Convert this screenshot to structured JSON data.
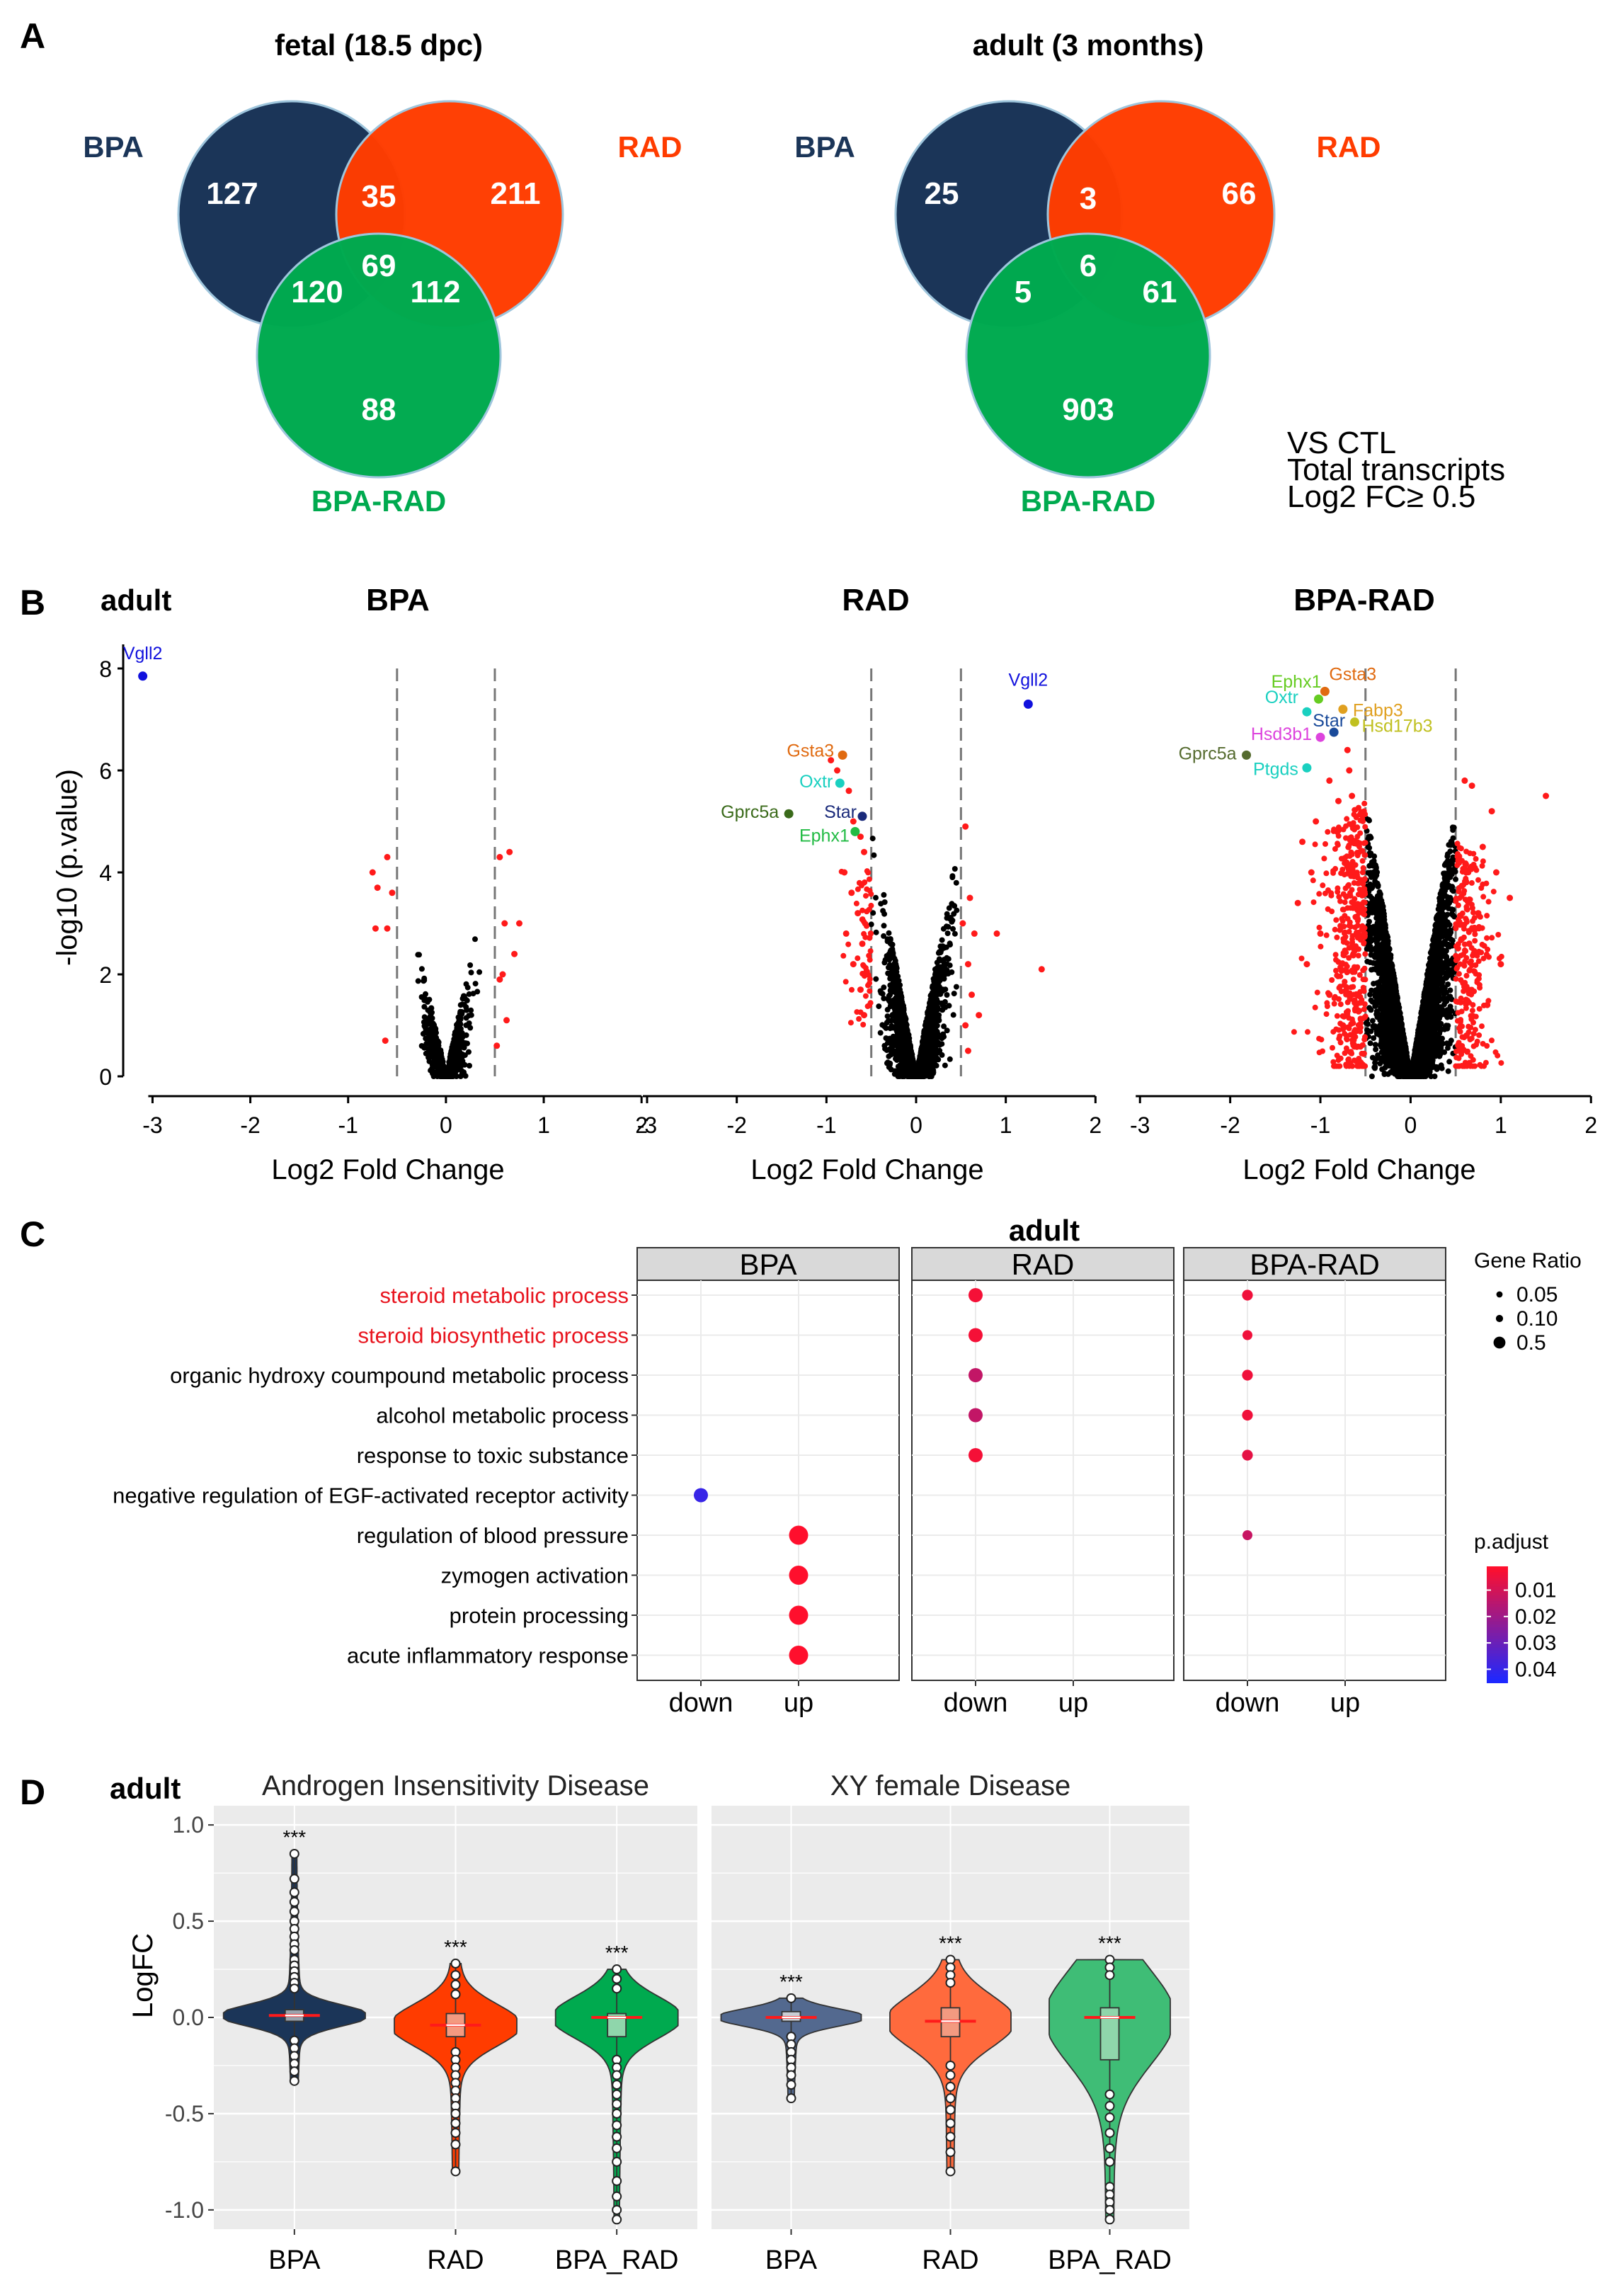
{
  "panel_labels": {
    "A": "A",
    "B": "B",
    "C": "C",
    "D": "D"
  },
  "colors": {
    "bpa": "#1b3558",
    "rad": "#ff3c00",
    "bparad": "#00aa4f",
    "sig": "#ff1a1a",
    "ns": "#000000",
    "bpa_light": "#53698f",
    "rad_light": "#ff6a3d",
    "bparad_light": "#3fbd76"
  },
  "panelA": {
    "venns": [
      {
        "title": "fetal (18.5 dpc)",
        "set_labels": {
          "bpa": "BPA",
          "rad": "RAD",
          "bparad": "BPA-RAD"
        },
        "counts": {
          "bpa_only": "127",
          "bpa_rad": "35",
          "rad_only": "211",
          "bpa_bparad": "120",
          "all": "69",
          "rad_bparad": "112",
          "bparad_only": "88"
        }
      },
      {
        "title": "adult (3 months)",
        "set_labels": {
          "bpa": "BPA",
          "rad": "RAD",
          "bparad": "BPA-RAD"
        },
        "counts": {
          "bpa_only": "25",
          "bpa_rad": "3",
          "rad_only": "66",
          "bpa_bparad": "5",
          "all": "6",
          "rad_bparad": "61",
          "bparad_only": "903"
        }
      }
    ],
    "note_lines": [
      "VS CTL",
      "Total transcripts",
      "Log2 FC≥ 0.5"
    ]
  },
  "panelB": {
    "label": "adult",
    "ylabel": "-log10 (p.value)",
    "xlabel": "Log2 Fold Change",
    "x_ticks": [
      "-3",
      "-2",
      "-1",
      "0",
      "1",
      "2"
    ],
    "y_ticks": [
      "0",
      "2",
      "4",
      "6",
      "8"
    ]
  },
  "chart_data": [
    {
      "type": "scatter",
      "title": "BPA",
      "xlabel": "Log2 Fold Change",
      "ylabel": "-log10 (p.value)",
      "xlim": [
        -3.3,
        2.1
      ],
      "ylim": [
        0,
        8.5
      ],
      "threshold": 0.5,
      "labeled_points": [
        {
          "label": "Vgll2",
          "x": -3.1,
          "y": 7.85,
          "color": "#1111dd"
        }
      ],
      "sig_points": [
        [
          -0.75,
          4.0
        ],
        [
          -0.7,
          3.7
        ],
        [
          -0.72,
          2.9
        ],
        [
          -0.6,
          2.9
        ],
        [
          -0.6,
          4.3
        ],
        [
          -0.55,
          3.6
        ],
        [
          -0.62,
          0.7
        ],
        [
          0.55,
          4.3
        ],
        [
          0.65,
          4.4
        ],
        [
          0.6,
          3.0
        ],
        [
          0.7,
          2.4
        ],
        [
          0.58,
          2.0
        ],
        [
          0.75,
          3.0
        ],
        [
          0.62,
          1.1
        ],
        [
          0.55,
          1.9
        ],
        [
          0.52,
          0.6
        ]
      ]
    },
    {
      "type": "scatter",
      "title": "RAD",
      "xlabel": "Log2 Fold Change",
      "ylabel": "-log10 (p.value)",
      "xlim": [
        -3.3,
        2.1
      ],
      "ylim": [
        0,
        8.5
      ],
      "threshold": 0.5,
      "labeled_points": [
        {
          "label": "Vgll2",
          "x": 1.25,
          "y": 7.3,
          "color": "#1111dd"
        },
        {
          "label": "Gsta3",
          "x": -0.82,
          "y": 6.3,
          "color": "#e06a10"
        },
        {
          "label": "Oxtr",
          "x": -0.85,
          "y": 5.75,
          "color": "#1ad0c0"
        },
        {
          "label": "Gprc5a",
          "x": -1.42,
          "y": 5.15,
          "color": "#3a6a1a"
        },
        {
          "label": "Star",
          "x": -0.6,
          "y": 5.1,
          "color": "#1a2a7a"
        },
        {
          "label": "Ephx1",
          "x": -0.68,
          "y": 4.8,
          "color": "#22bb44"
        }
      ],
      "sig_points": [
        [
          -0.95,
          6.2
        ],
        [
          -0.88,
          6.0
        ],
        [
          -0.75,
          5.6
        ],
        [
          -0.7,
          5.0
        ],
        [
          -0.62,
          4.7
        ],
        [
          -0.58,
          4.4
        ],
        [
          -0.8,
          4.0
        ],
        [
          -0.72,
          3.6
        ],
        [
          -0.65,
          3.2
        ],
        [
          -0.78,
          2.8
        ],
        [
          -0.6,
          2.6
        ],
        [
          -0.7,
          2.2
        ],
        [
          -0.62,
          1.7
        ],
        [
          -0.58,
          1.2
        ],
        [
          0.55,
          4.9
        ],
        [
          0.6,
          3.5
        ],
        [
          0.52,
          3.0
        ],
        [
          0.65,
          2.8
        ],
        [
          0.9,
          2.8
        ],
        [
          0.58,
          2.2
        ],
        [
          0.62,
          1.6
        ],
        [
          0.55,
          1.0
        ],
        [
          1.4,
          2.1
        ],
        [
          0.7,
          1.2
        ],
        [
          0.58,
          0.5
        ]
      ]
    },
    {
      "type": "scatter",
      "title": "BPA-RAD",
      "xlabel": "Log2 Fold Change",
      "ylabel": "-log10 (p.value)",
      "xlim": [
        -3.3,
        2.1
      ],
      "ylim": [
        0,
        8.5
      ],
      "threshold": 0.5,
      "labeled_points": [
        {
          "label": "Gsta3",
          "x": -0.95,
          "y": 7.55,
          "color": "#e06a10"
        },
        {
          "label": "Ephx1",
          "x": -1.02,
          "y": 7.4,
          "color": "#66cc22"
        },
        {
          "label": "Fabp3",
          "x": -0.75,
          "y": 7.2,
          "color": "#e0a020"
        },
        {
          "label": "Oxtr",
          "x": -1.15,
          "y": 7.15,
          "color": "#1ad0c0"
        },
        {
          "label": "Star",
          "x": -0.85,
          "y": 6.75,
          "color": "#1a4a9a"
        },
        {
          "label": "Hsd17b3",
          "x": -0.62,
          "y": 6.95,
          "color": "#c0c020"
        },
        {
          "label": "Hsd3b1",
          "x": -1.0,
          "y": 6.65,
          "color": "#dd44dd"
        },
        {
          "label": "Gprc5a",
          "x": -1.82,
          "y": 6.3,
          "color": "#556b2f"
        },
        {
          "label": "Ptgds",
          "x": -1.15,
          "y": 6.05,
          "color": "#1ad0c0"
        }
      ],
      "sig_points": [
        [
          -0.7,
          6.4
        ],
        [
          -0.68,
          6.0
        ],
        [
          -0.9,
          5.8
        ],
        [
          -0.65,
          5.5
        ],
        [
          -0.8,
          5.4
        ],
        [
          1.5,
          5.5
        ],
        [
          0.6,
          5.8
        ],
        [
          0.68,
          5.7
        ],
        [
          0.9,
          5.2
        ],
        [
          0.8,
          4.5
        ],
        [
          0.95,
          4.0
        ],
        [
          1.1,
          3.5
        ],
        [
          0.75,
          3.2
        ],
        [
          0.65,
          2.6
        ],
        [
          1.0,
          2.2
        ],
        [
          0.85,
          1.4
        ],
        [
          0.62,
          0.8
        ],
        [
          -1.2,
          4.6
        ],
        [
          -1.1,
          4.0
        ],
        [
          -1.25,
          3.4
        ],
        [
          -1.0,
          2.8
        ],
        [
          -1.15,
          2.2
        ],
        [
          -0.9,
          1.6
        ],
        [
          -0.75,
          1.0
        ],
        [
          -1.05,
          5.0
        ]
      ]
    },
    {
      "type": "dotplot",
      "title": "adult",
      "facets": [
        "BPA",
        "RAD",
        "BPA-RAD"
      ],
      "directions": [
        "down",
        "up"
      ],
      "terms": [
        "steroid metabolic process",
        "steroid biosynthetic process",
        "organic hydroxy coumpound metabolic process",
        "alcohol metabolic process",
        "response to toxic substance",
        "negative regulation of EGF-activated receptor activity",
        "regulation of blood pressure",
        "zymogen activation",
        "protein processing",
        "acute inflammatory response"
      ],
      "highlight_terms": [
        "steroid metabolic process",
        "steroid biosynthetic process"
      ],
      "points": [
        {
          "facet": "RAD",
          "direction": "down",
          "term": "steroid metabolic process",
          "gene_ratio": 0.2,
          "p_adjust": 0.003
        },
        {
          "facet": "RAD",
          "direction": "down",
          "term": "steroid biosynthetic process",
          "gene_ratio": 0.2,
          "p_adjust": 0.003
        },
        {
          "facet": "RAD",
          "direction": "down",
          "term": "organic hydroxy coumpound metabolic process",
          "gene_ratio": 0.2,
          "p_adjust": 0.013
        },
        {
          "facet": "RAD",
          "direction": "down",
          "term": "alcohol metabolic process",
          "gene_ratio": 0.2,
          "p_adjust": 0.013
        },
        {
          "facet": "RAD",
          "direction": "down",
          "term": "response to toxic substance",
          "gene_ratio": 0.2,
          "p_adjust": 0.003
        },
        {
          "facet": "BPA",
          "direction": "down",
          "term": "negative regulation of EGF-activated receptor activity",
          "gene_ratio": 0.2,
          "p_adjust": 0.04
        },
        {
          "facet": "BPA",
          "direction": "up",
          "term": "regulation of blood pressure",
          "gene_ratio": 0.5,
          "p_adjust": 0.001
        },
        {
          "facet": "BPA",
          "direction": "up",
          "term": "zymogen activation",
          "gene_ratio": 0.5,
          "p_adjust": 0.001
        },
        {
          "facet": "BPA",
          "direction": "up",
          "term": "protein processing",
          "gene_ratio": 0.5,
          "p_adjust": 0.001
        },
        {
          "facet": "BPA",
          "direction": "up",
          "term": "acute inflammatory response",
          "gene_ratio": 0.5,
          "p_adjust": 0.001
        },
        {
          "facet": "BPA-RAD",
          "direction": "down",
          "term": "steroid metabolic process",
          "gene_ratio": 0.07,
          "p_adjust": 0.004
        },
        {
          "facet": "BPA-RAD",
          "direction": "down",
          "term": "steroid biosynthetic process",
          "gene_ratio": 0.05,
          "p_adjust": 0.004
        },
        {
          "facet": "BPA-RAD",
          "direction": "down",
          "term": "organic hydroxy coumpound metabolic process",
          "gene_ratio": 0.07,
          "p_adjust": 0.004
        },
        {
          "facet": "BPA-RAD",
          "direction": "down",
          "term": "alcohol metabolic process",
          "gene_ratio": 0.07,
          "p_adjust": 0.004
        },
        {
          "facet": "BPA-RAD",
          "direction": "down",
          "term": "response to toxic substance",
          "gene_ratio": 0.07,
          "p_adjust": 0.006
        },
        {
          "facet": "BPA-RAD",
          "direction": "down",
          "term": "regulation of blood pressure",
          "gene_ratio": 0.05,
          "p_adjust": 0.012
        }
      ],
      "size_legend": {
        "title": "Gene Ratio",
        "labels": [
          "0.05",
          "0.10",
          "0.5"
        ],
        "values": [
          0.05,
          0.1,
          0.5
        ]
      },
      "color_legend": {
        "title": "p.adjust",
        "labels": [
          "0.01",
          "0.02",
          "0.03",
          "0.04"
        ],
        "values": [
          0.01,
          0.02,
          0.03,
          0.04
        ],
        "range": [
          0.001,
          0.045
        ]
      }
    },
    {
      "type": "violin",
      "title": "adult",
      "ylabel": "LogFC",
      "ylim": [
        -1.1,
        1.1
      ],
      "y_ticks": [
        "1.0",
        "0.5",
        "0.0",
        "-0.5",
        "-1.0"
      ],
      "y_tick_values": [
        1.0,
        0.5,
        0.0,
        -0.5,
        -1.0
      ],
      "facets": [
        {
          "title": "Androgen Insensitivity Disease",
          "groups": [
            {
              "name": "BPA",
              "signif": "***",
              "median": 0.01,
              "q1": -0.02,
              "q3": 0.04,
              "min": -0.33,
              "max": 0.85,
              "mean": 0.01,
              "variant": "dark",
              "outliers": [
                0.85,
                0.72,
                0.65,
                0.6,
                0.55,
                0.5,
                0.46,
                0.42,
                0.38,
                0.35,
                0.3,
                0.27,
                0.24,
                0.21,
                0.18,
                0.15,
                -0.12,
                -0.16,
                -0.2,
                -0.24,
                -0.28,
                -0.33
              ]
            },
            {
              "name": "RAD",
              "signif": "***",
              "median": -0.04,
              "q1": -0.1,
              "q3": 0.02,
              "min": -0.8,
              "max": 0.28,
              "mean": -0.04,
              "variant": "dark",
              "outliers": [
                0.28,
                0.22,
                0.17,
                0.12,
                -0.18,
                -0.22,
                -0.26,
                -0.3,
                -0.34,
                -0.38,
                -0.42,
                -0.46,
                -0.5,
                -0.55,
                -0.6,
                -0.66,
                -0.8
              ]
            },
            {
              "name": "BPA_RAD",
              "signif": "***",
              "median": 0.0,
              "q1": -0.1,
              "q3": 0.02,
              "min": -1.05,
              "max": 0.25,
              "mean": 0.0,
              "variant": "dark",
              "outliers": [
                0.25,
                0.2,
                0.15,
                -0.22,
                -0.26,
                -0.3,
                -0.35,
                -0.4,
                -0.45,
                -0.5,
                -0.56,
                -0.62,
                -0.68,
                -0.75,
                -0.85,
                -0.93,
                -1.0,
                -1.05
              ]
            }
          ]
        },
        {
          "title": "XY female Disease",
          "groups": [
            {
              "name": "BPA",
              "signif": "***",
              "median": 0.0,
              "q1": -0.02,
              "q3": 0.03,
              "min": -0.42,
              "max": 0.1,
              "mean": 0.0,
              "variant": "light",
              "outliers": [
                0.1,
                -0.1,
                -0.14,
                -0.18,
                -0.22,
                -0.26,
                -0.3,
                -0.35,
                -0.42
              ]
            },
            {
              "name": "RAD",
              "signif": "***",
              "median": -0.02,
              "q1": -0.1,
              "q3": 0.05,
              "min": -0.8,
              "max": 0.3,
              "mean": -0.02,
              "variant": "light",
              "outliers": [
                0.3,
                0.26,
                0.22,
                0.18,
                -0.25,
                -0.3,
                -0.36,
                -0.42,
                -0.48,
                -0.55,
                -0.62,
                -0.7,
                -0.8
              ]
            },
            {
              "name": "BPA_RAD",
              "signif": "***",
              "median": 0.0,
              "q1": -0.22,
              "q3": 0.05,
              "min": -1.05,
              "max": 0.3,
              "mean": 0.0,
              "variant": "light",
              "outliers": [
                0.3,
                0.26,
                0.22,
                -0.4,
                -0.46,
                -0.52,
                -0.6,
                -0.68,
                -0.75,
                -0.88,
                -0.92,
                -0.96,
                -1.0,
                -1.05
              ]
            }
          ]
        }
      ]
    }
  ]
}
